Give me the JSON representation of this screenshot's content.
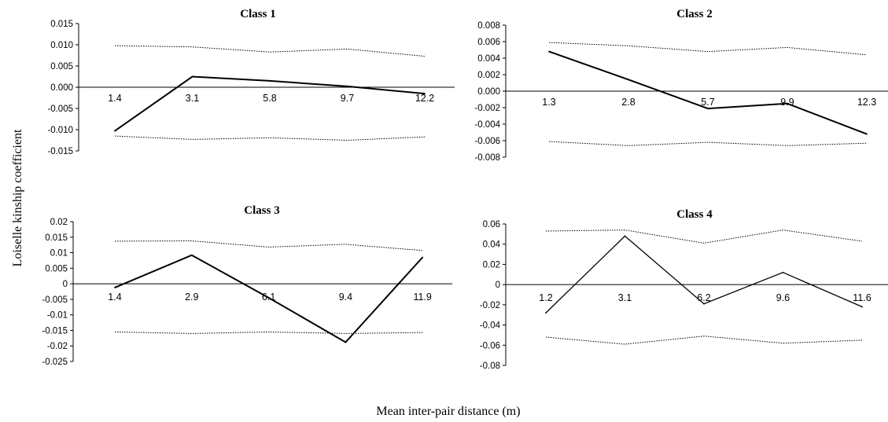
{
  "ylabel": "Loiselle kinship coefficient",
  "xlabel": "Mean inter-pair distance (m)",
  "chart_data": [
    {
      "type": "line",
      "title": "Class 1",
      "categories": [
        "1.4",
        "3.1",
        "5.8",
        "9.7",
        "12.2"
      ],
      "ylim": [
        -0.015,
        0.015
      ],
      "yticks": [
        "0.015",
        "0.010",
        "0.005",
        "0.000",
        "-0.005",
        "-0.010",
        "-0.015"
      ],
      "series": [
        {
          "values": [
            -0.0103,
            0.0025,
            0.0015,
            0.0002,
            -0.0015
          ]
        },
        {
          "values": [
            0.0098,
            0.0095,
            0.0083,
            0.009,
            0.0073
          ]
        },
        {
          "values": [
            -0.0115,
            -0.0123,
            -0.0119,
            -0.0125,
            -0.0117
          ]
        }
      ]
    },
    {
      "type": "line",
      "title": "Class 2",
      "categories": [
        "1.3",
        "2.8",
        "5.7",
        "9.9",
        "12.3"
      ],
      "ylim": [
        -0.008,
        0.008
      ],
      "yticks": [
        "0.008",
        "0.006",
        "0.004",
        "0.002",
        "0.000",
        "-0.002",
        "-0.004",
        "-0.006",
        "-0.008"
      ],
      "series": [
        {
          "values": [
            0.0048,
            0.0014,
            -0.0021,
            -0.0015,
            -0.0052
          ]
        },
        {
          "values": [
            0.0059,
            0.0055,
            0.0048,
            0.0053,
            0.0044
          ]
        },
        {
          "values": [
            -0.0061,
            -0.0066,
            -0.0062,
            -0.0066,
            -0.0063
          ]
        }
      ]
    },
    {
      "type": "line",
      "title": "Class 3",
      "categories": [
        "1.4",
        "2.9",
        "6.1",
        "9.4",
        "11.9"
      ],
      "ylim": [
        -0.025,
        0.02
      ],
      "yticks": [
        "0.02",
        "0.015",
        "0.01",
        "0.005",
        "0",
        "-0.005",
        "-0.01",
        "-0.015",
        "-0.02",
        "-0.025"
      ],
      "series": [
        {
          "values": [
            -0.0012,
            0.0092,
            -0.0045,
            -0.0188,
            0.0085
          ]
        },
        {
          "values": [
            0.0137,
            0.0138,
            0.0118,
            0.0127,
            0.0107
          ]
        },
        {
          "values": [
            -0.0155,
            -0.016,
            -0.0155,
            -0.016,
            -0.0157
          ]
        }
      ]
    },
    {
      "type": "line",
      "title": "Class 4",
      "categories": [
        "1.2",
        "3.1",
        "6.2",
        "9.6",
        "11.6"
      ],
      "ylim": [
        -0.08,
        0.06
      ],
      "yticks": [
        "0.06",
        "0.04",
        "0.02",
        "0",
        "-0.02",
        "-0.04",
        "-0.06",
        "-0.08"
      ],
      "series": [
        {
          "values": [
            -0.028,
            0.048,
            -0.019,
            0.012,
            -0.022
          ]
        },
        {
          "values": [
            0.053,
            0.054,
            0.041,
            0.054,
            0.043
          ]
        },
        {
          "values": [
            -0.052,
            -0.059,
            -0.051,
            -0.058,
            -0.055
          ]
        }
      ]
    }
  ]
}
